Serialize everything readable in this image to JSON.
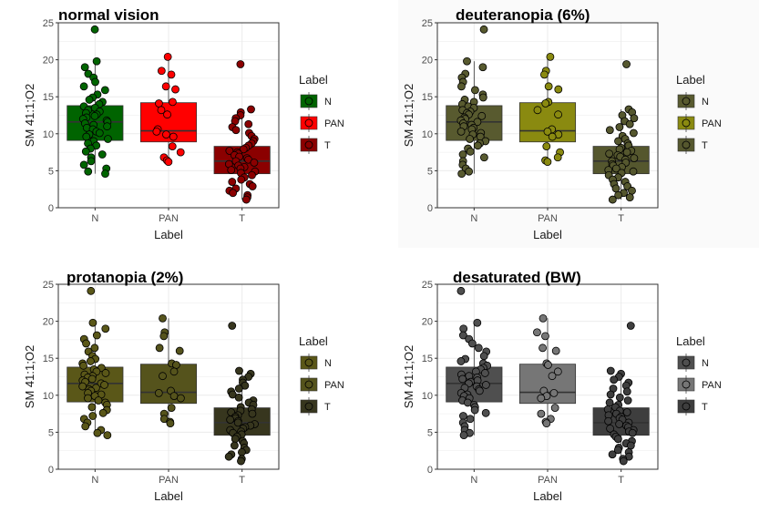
{
  "chart_data": [
    {
      "type": "box",
      "title": "normal vision",
      "xlabel": "Label",
      "ylabel": "SM 41:1;O2",
      "ylim": [
        0,
        25
      ],
      "yticks": [
        0,
        5,
        10,
        15,
        20,
        25
      ],
      "categories": [
        "N",
        "PAN",
        "T"
      ],
      "background": "#ffffff",
      "legend": {
        "title": "Label",
        "position": "right"
      },
      "colors": [
        "#006400",
        "#ff0000",
        "#8b0000"
      ],
      "boxes": [
        {
          "category": "N",
          "q1": 9.1,
          "median": 11.6,
          "q3": 13.8,
          "min": 4.6,
          "max": 19.8,
          "points": [
            24.1,
            19.8,
            19.0,
            18.1,
            17.6,
            17.0,
            16.4,
            15.9,
            15.3,
            14.9,
            14.6,
            14.3,
            14.0,
            13.7,
            13.5,
            13.2,
            13.0,
            12.8,
            12.6,
            12.4,
            12.2,
            12.0,
            11.8,
            11.6,
            11.4,
            11.2,
            11.0,
            10.8,
            10.6,
            10.3,
            10.1,
            9.9,
            9.6,
            9.3,
            9.0,
            8.7,
            8.4,
            8.0,
            7.6,
            7.2,
            6.8,
            6.3,
            5.8,
            5.3,
            4.9,
            4.6
          ]
        },
        {
          "category": "PAN",
          "q1": 8.9,
          "median": 10.4,
          "q3": 14.2,
          "min": 6.2,
          "max": 20.4,
          "points": [
            20.4,
            18.5,
            18.0,
            16.4,
            16.0,
            14.3,
            14.1,
            13.2,
            12.6,
            10.6,
            10.3,
            9.9,
            9.6,
            8.3,
            7.5,
            6.8,
            6.4,
            6.2
          ]
        },
        {
          "category": "T",
          "q1": 4.6,
          "median": 6.3,
          "q3": 8.3,
          "min": 1.1,
          "max": 13.3,
          "points": [
            19.4,
            13.3,
            12.9,
            12.5,
            12.1,
            11.7,
            11.3,
            10.9,
            10.5,
            10.1,
            9.7,
            9.3,
            9.0,
            8.7,
            8.4,
            8.1,
            7.9,
            7.7,
            7.5,
            7.3,
            7.1,
            6.9,
            6.7,
            6.5,
            6.3,
            6.1,
            5.9,
            5.7,
            5.5,
            5.3,
            5.1,
            4.9,
            4.7,
            4.4,
            4.1,
            3.8,
            3.5,
            3.2,
            2.9,
            2.6,
            2.3,
            2.0,
            1.7,
            1.4,
            1.1
          ]
        }
      ]
    },
    {
      "type": "box",
      "title": "deuteranopia (6%)",
      "xlabel": "Label",
      "ylabel": "SM 41:1;O2",
      "ylim": [
        0,
        25
      ],
      "yticks": [
        0,
        5,
        10,
        15,
        20,
        25
      ],
      "categories": [
        "N",
        "PAN",
        "T"
      ],
      "background": "#fafafa",
      "legend": {
        "title": "Label",
        "position": "right"
      },
      "colors": [
        "#585a2f",
        "#8a8a10",
        "#55572e"
      ],
      "boxes": [
        {
          "category": "N",
          "q1": 9.1,
          "median": 11.6,
          "q3": 13.8,
          "min": 4.6,
          "max": 19.8,
          "points": [
            24.1,
            19.8,
            19.0,
            18.1,
            17.6,
            17.0,
            16.4,
            15.9,
            15.3,
            14.9,
            14.6,
            14.3,
            14.0,
            13.7,
            13.5,
            13.2,
            13.0,
            12.8,
            12.6,
            12.4,
            12.2,
            12.0,
            11.8,
            11.6,
            11.4,
            11.2,
            11.0,
            10.8,
            10.6,
            10.3,
            10.1,
            9.9,
            9.6,
            9.3,
            9.0,
            8.7,
            8.4,
            8.0,
            7.6,
            7.2,
            6.8,
            6.3,
            5.8,
            5.3,
            4.9,
            4.6
          ]
        },
        {
          "category": "PAN",
          "q1": 8.9,
          "median": 10.4,
          "q3": 14.2,
          "min": 6.2,
          "max": 20.4,
          "points": [
            20.4,
            18.5,
            18.0,
            16.4,
            16.0,
            14.3,
            14.1,
            13.2,
            12.6,
            10.6,
            10.3,
            9.9,
            9.6,
            8.3,
            7.5,
            6.8,
            6.4,
            6.2
          ]
        },
        {
          "category": "T",
          "q1": 4.6,
          "median": 6.3,
          "q3": 8.3,
          "min": 1.1,
          "max": 13.3,
          "points": [
            19.4,
            13.3,
            12.9,
            12.5,
            12.1,
            11.7,
            11.3,
            10.9,
            10.5,
            10.1,
            9.7,
            9.3,
            9.0,
            8.7,
            8.4,
            8.1,
            7.9,
            7.7,
            7.5,
            7.3,
            7.1,
            6.9,
            6.7,
            6.5,
            6.3,
            6.1,
            5.9,
            5.7,
            5.5,
            5.3,
            5.1,
            4.9,
            4.7,
            4.4,
            4.1,
            3.8,
            3.5,
            3.2,
            2.9,
            2.6,
            2.3,
            2.0,
            1.7,
            1.4,
            1.1
          ]
        }
      ]
    },
    {
      "type": "box",
      "title": "protanopia (2%)",
      "xlabel": "Label",
      "ylabel": "SM 41:1;O2",
      "ylim": [
        0,
        25
      ],
      "yticks": [
        0,
        5,
        10,
        15,
        20,
        25
      ],
      "categories": [
        "N",
        "PAN",
        "T"
      ],
      "background": "#ffffff",
      "legend": {
        "title": "Label",
        "position": "right"
      },
      "colors": [
        "#5a5718",
        "#55531c",
        "#37361e"
      ],
      "boxes": [
        {
          "category": "N",
          "q1": 9.1,
          "median": 11.6,
          "q3": 13.8,
          "min": 4.6,
          "max": 19.8,
          "points": [
            24.1,
            19.8,
            19.0,
            18.1,
            17.6,
            17.0,
            16.4,
            15.9,
            15.3,
            14.9,
            14.6,
            14.3,
            14.0,
            13.7,
            13.5,
            13.2,
            13.0,
            12.8,
            12.6,
            12.4,
            12.2,
            12.0,
            11.8,
            11.6,
            11.4,
            11.2,
            11.0,
            10.8,
            10.6,
            10.3,
            10.1,
            9.9,
            9.6,
            9.3,
            9.0,
            8.7,
            8.4,
            8.0,
            7.6,
            7.2,
            6.8,
            6.3,
            5.8,
            5.3,
            4.9,
            4.6
          ]
        },
        {
          "category": "PAN",
          "q1": 8.9,
          "median": 10.4,
          "q3": 14.2,
          "min": 6.2,
          "max": 20.4,
          "points": [
            20.4,
            18.5,
            18.0,
            16.4,
            16.0,
            14.3,
            14.1,
            13.2,
            12.6,
            10.6,
            10.3,
            9.9,
            9.6,
            8.3,
            7.5,
            6.8,
            6.4,
            6.2
          ]
        },
        {
          "category": "T",
          "q1": 4.6,
          "median": 6.3,
          "q3": 8.3,
          "min": 1.1,
          "max": 13.3,
          "points": [
            19.4,
            13.3,
            12.9,
            12.5,
            12.1,
            11.7,
            11.3,
            10.9,
            10.5,
            10.1,
            9.7,
            9.3,
            9.0,
            8.7,
            8.4,
            8.1,
            7.9,
            7.7,
            7.5,
            7.3,
            7.1,
            6.9,
            6.7,
            6.5,
            6.3,
            6.1,
            5.9,
            5.7,
            5.5,
            5.3,
            5.1,
            4.9,
            4.7,
            4.4,
            4.1,
            3.8,
            3.5,
            3.2,
            2.9,
            2.6,
            2.3,
            2.0,
            1.7,
            1.4,
            1.1
          ]
        }
      ]
    },
    {
      "type": "box",
      "title": "desaturated (BW)",
      "xlabel": "Label",
      "ylabel": "SM 41:1;O2",
      "ylim": [
        0,
        25
      ],
      "yticks": [
        0,
        5,
        10,
        15,
        20,
        25
      ],
      "categories": [
        "N",
        "PAN",
        "T"
      ],
      "background": "#ffffff",
      "legend": {
        "title": "Label",
        "position": "right"
      },
      "colors": [
        "#4f4f4f",
        "#767676",
        "#3e3e3e"
      ],
      "boxes": [
        {
          "category": "N",
          "q1": 9.1,
          "median": 11.6,
          "q3": 13.8,
          "min": 4.6,
          "max": 19.8,
          "points": [
            24.1,
            19.8,
            19.0,
            18.1,
            17.6,
            17.0,
            16.4,
            15.9,
            15.3,
            14.9,
            14.6,
            14.3,
            14.0,
            13.7,
            13.5,
            13.2,
            13.0,
            12.8,
            12.6,
            12.4,
            12.2,
            12.0,
            11.8,
            11.6,
            11.4,
            11.2,
            11.0,
            10.8,
            10.6,
            10.3,
            10.1,
            9.9,
            9.6,
            9.3,
            9.0,
            8.7,
            8.4,
            8.0,
            7.6,
            7.2,
            6.8,
            6.3,
            5.8,
            5.3,
            4.9,
            4.6
          ]
        },
        {
          "category": "PAN",
          "q1": 8.9,
          "median": 10.4,
          "q3": 14.2,
          "min": 6.2,
          "max": 20.4,
          "points": [
            20.4,
            18.5,
            18.0,
            16.4,
            16.0,
            14.3,
            14.1,
            13.2,
            12.6,
            10.6,
            10.3,
            9.9,
            9.6,
            8.3,
            7.5,
            6.8,
            6.4,
            6.2
          ]
        },
        {
          "category": "T",
          "q1": 4.6,
          "median": 6.3,
          "q3": 8.3,
          "min": 1.1,
          "max": 13.3,
          "points": [
            19.4,
            13.3,
            12.9,
            12.5,
            12.1,
            11.7,
            11.3,
            10.9,
            10.5,
            10.1,
            9.7,
            9.3,
            9.0,
            8.7,
            8.4,
            8.1,
            7.9,
            7.7,
            7.5,
            7.3,
            7.1,
            6.9,
            6.7,
            6.5,
            6.3,
            6.1,
            5.9,
            5.7,
            5.5,
            5.3,
            5.1,
            4.9,
            4.7,
            4.4,
            4.1,
            3.8,
            3.5,
            3.2,
            2.9,
            2.6,
            2.3,
            2.0,
            1.7,
            1.4,
            1.1
          ]
        }
      ]
    }
  ]
}
